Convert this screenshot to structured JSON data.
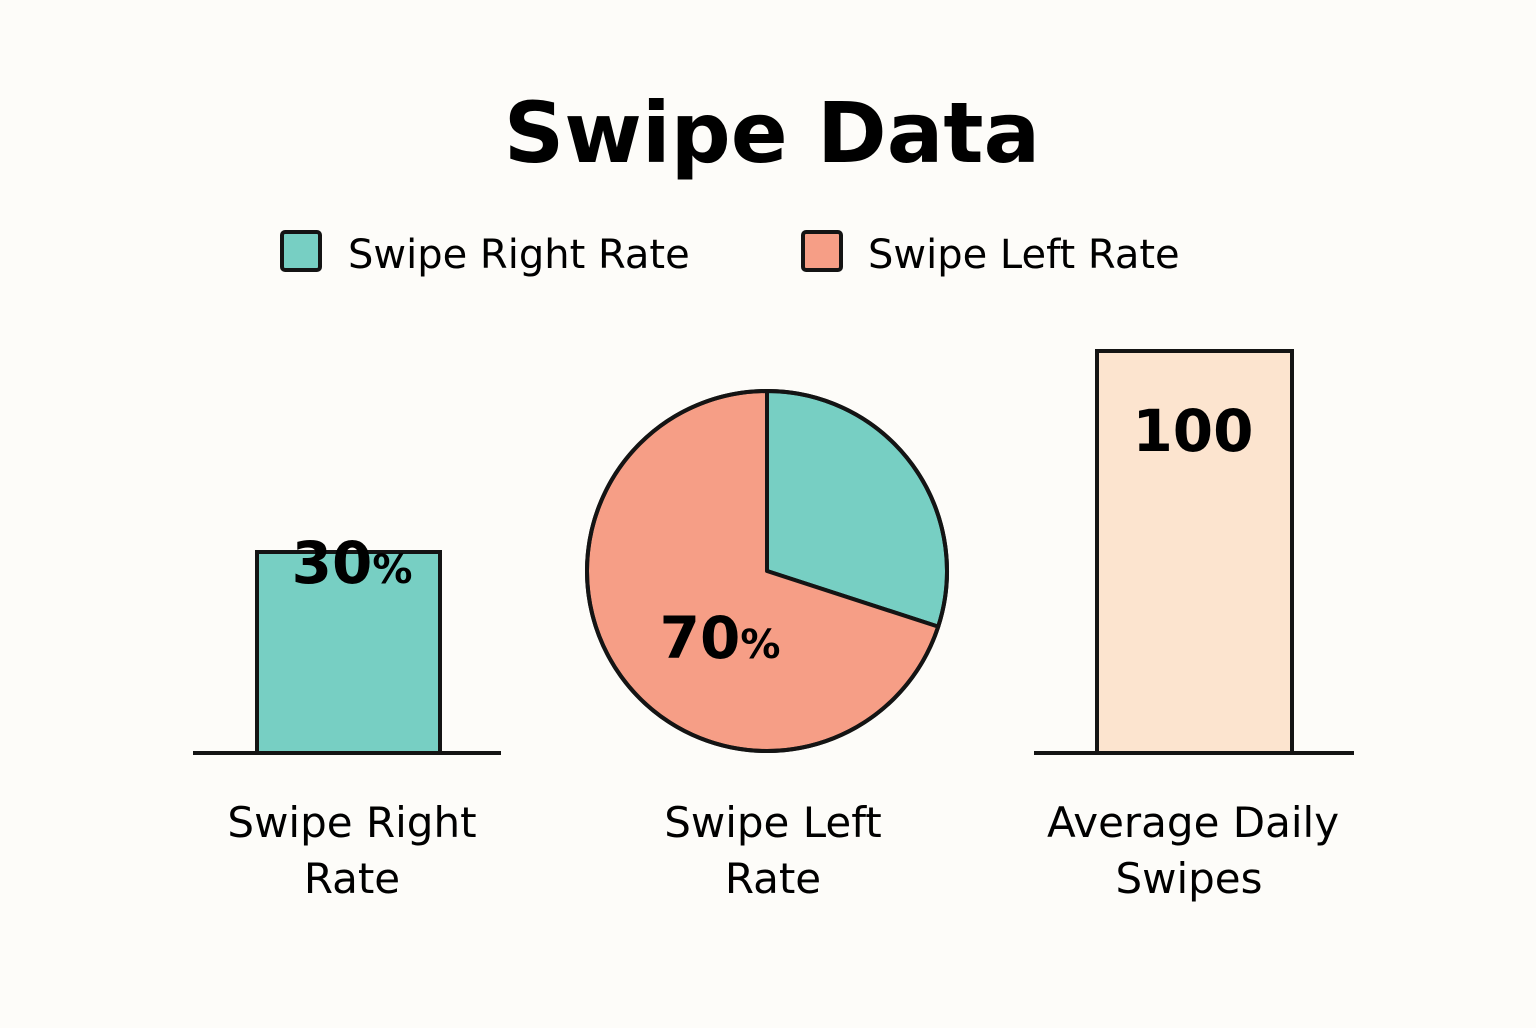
{
  "chart_data": {
    "type": "bar",
    "title": "Swipe Data",
    "colors": {
      "swipe_right": "#77cfc3",
      "swipe_left": "#f69e86",
      "daily": "#fce4cf",
      "stroke": "#141414"
    },
    "legend": {
      "placement": "top-center",
      "items": [
        {
          "label": "Swipe Right Rate",
          "color": "#77cfc3"
        },
        {
          "label": "Swipe Left Rate",
          "color": "#f69e86"
        }
      ]
    },
    "panels": [
      {
        "type": "bar",
        "category": [
          "Swipe Right",
          "Rate"
        ],
        "value": 30,
        "value_text": "30",
        "unit_text": "%",
        "ylim": [
          0,
          60
        ],
        "color": "#77cfc3"
      },
      {
        "type": "pie",
        "category": [
          "Swipe Left",
          "Rate"
        ],
        "slices": [
          {
            "name": "Swipe Right Rate",
            "value": 30,
            "color": "#77cfc3"
          },
          {
            "name": "Swipe Left Rate",
            "value": 70,
            "color": "#f69e86"
          }
        ],
        "value_text": "70",
        "unit_text": "%"
      },
      {
        "type": "bar",
        "category": [
          "Average Daily",
          "Swipes"
        ],
        "value": 100,
        "value_text": "100",
        "unit_text": "",
        "ylim": [
          0,
          100
        ],
        "color": "#fce4cf"
      }
    ]
  }
}
